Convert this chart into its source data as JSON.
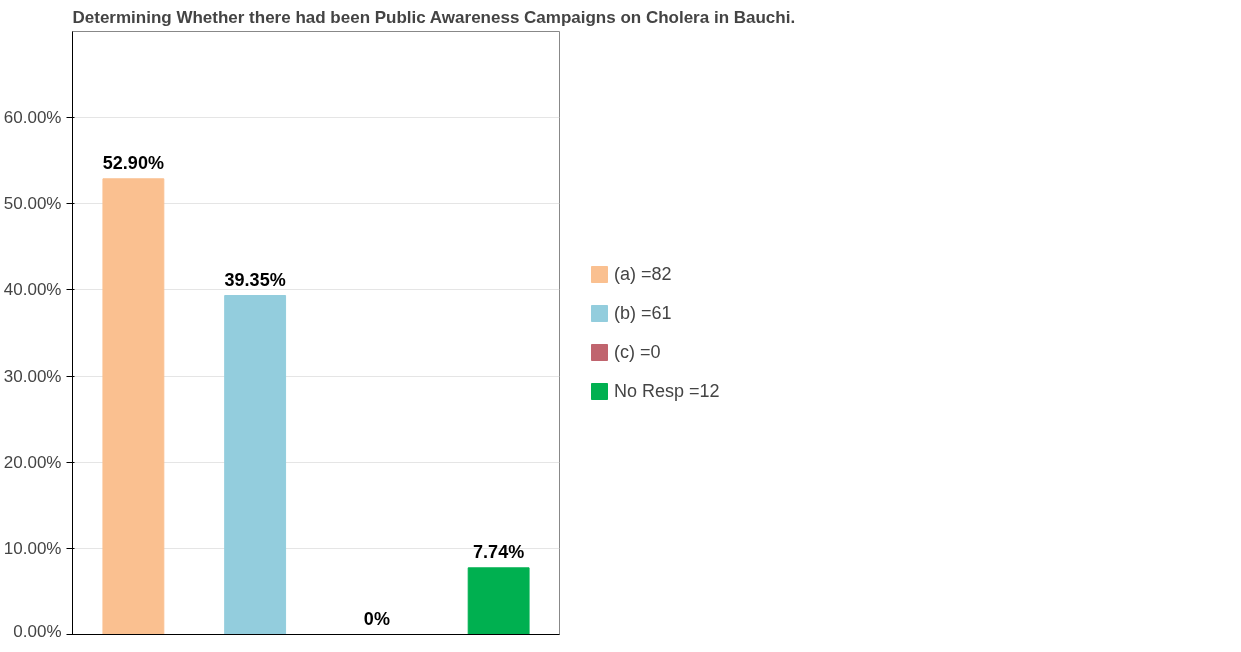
{
  "chart_data": {
    "type": "bar",
    "title": "Determining Whether there had been Public Awareness Campaigns on Cholera in Bauchi.",
    "categories": [
      null,
      null,
      null,
      null
    ],
    "series": [
      {
        "name": "(a) =82",
        "color": "#fac090",
        "values": [
          52.9,
          null,
          null,
          null
        ],
        "value_labels": [
          "52.90%",
          null,
          null,
          null
        ]
      },
      {
        "name": "(b) =61",
        "color": "#93cddd",
        "values": [
          null,
          39.35,
          null,
          null
        ],
        "value_labels": [
          null,
          "39.35%",
          null,
          null
        ]
      },
      {
        "name": "(c) =0",
        "color": "#c0646e",
        "values": [
          null,
          null,
          0,
          null
        ],
        "value_labels": [
          null,
          null,
          "0%",
          null
        ]
      },
      {
        "name": "No Resp =12",
        "color": "#00b050",
        "values": [
          null,
          null,
          null,
          7.74
        ],
        "value_labels": [
          null,
          null,
          null,
          "7.74%"
        ]
      }
    ],
    "ylim": [
      0,
      70
    ],
    "yticks": [
      {
        "value": 0,
        "label": "0.00%"
      },
      {
        "value": 10,
        "label": "10.00%"
      },
      {
        "value": 20,
        "label": "20.00%"
      },
      {
        "value": 30,
        "label": "30.00%"
      },
      {
        "value": 40,
        "label": "40.00%"
      },
      {
        "value": 50,
        "label": "50.00%"
      },
      {
        "value": 60,
        "label": "60.00%"
      }
    ],
    "grid": "y",
    "legend": "right"
  }
}
